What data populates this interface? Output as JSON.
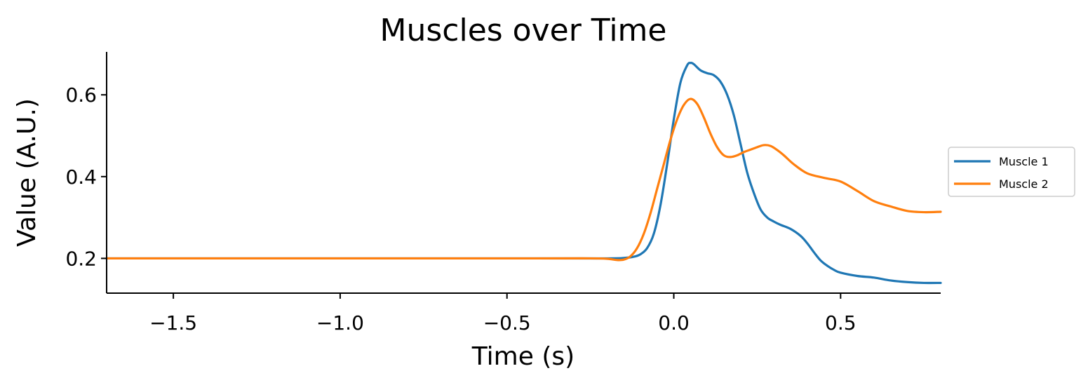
{
  "chart_data": {
    "type": "line",
    "title": "Muscles over Time",
    "xlabel": "Time (s)",
    "ylabel": "Value (A.U.)",
    "xlim": [
      -1.7,
      0.8
    ],
    "ylim": [
      0.115,
      0.705
    ],
    "xticks": [
      -1.5,
      -1.0,
      -0.5,
      0.0,
      0.5
    ],
    "xtick_labels": [
      "−1.5",
      "−1.0",
      "−0.5",
      "0.0",
      "0.5"
    ],
    "yticks": [
      0.2,
      0.4,
      0.6
    ],
    "ytick_labels": [
      "0.2",
      "0.4",
      "0.6"
    ],
    "grid": false,
    "legend_position": "right, outside plot",
    "series": [
      {
        "name": "Muscle 1",
        "color": "#1f77b4",
        "x": [
          -1.7,
          -0.5,
          -0.2,
          -0.15,
          -0.12,
          -0.1,
          -0.08,
          -0.06,
          -0.04,
          -0.02,
          0.0,
          0.02,
          0.04,
          0.05,
          0.06,
          0.08,
          0.1,
          0.12,
          0.14,
          0.16,
          0.18,
          0.2,
          0.22,
          0.24,
          0.26,
          0.28,
          0.3,
          0.32,
          0.35,
          0.38,
          0.4,
          0.42,
          0.44,
          0.46,
          0.48,
          0.5,
          0.55,
          0.6,
          0.65,
          0.7,
          0.75,
          0.8
        ],
        "values": [
          0.2,
          0.2,
          0.2,
          0.201,
          0.204,
          0.21,
          0.225,
          0.26,
          0.33,
          0.43,
          0.54,
          0.63,
          0.672,
          0.678,
          0.675,
          0.66,
          0.653,
          0.648,
          0.632,
          0.6,
          0.55,
          0.48,
          0.41,
          0.36,
          0.32,
          0.3,
          0.29,
          0.282,
          0.272,
          0.255,
          0.237,
          0.215,
          0.195,
          0.182,
          0.172,
          0.165,
          0.157,
          0.153,
          0.146,
          0.142,
          0.14,
          0.14
        ]
      },
      {
        "name": "Muscle 2",
        "color": "#ff7f0e",
        "x": [
          -1.7,
          -0.5,
          -0.25,
          -0.2,
          -0.17,
          -0.15,
          -0.13,
          -0.11,
          -0.09,
          -0.07,
          -0.05,
          -0.03,
          -0.01,
          0.01,
          0.03,
          0.05,
          0.07,
          0.09,
          0.11,
          0.13,
          0.15,
          0.17,
          0.19,
          0.21,
          0.23,
          0.25,
          0.27,
          0.29,
          0.31,
          0.33,
          0.36,
          0.4,
          0.45,
          0.5,
          0.55,
          0.6,
          0.65,
          0.7,
          0.75,
          0.8
        ],
        "values": [
          0.2,
          0.2,
          0.2,
          0.199,
          0.196,
          0.197,
          0.205,
          0.225,
          0.26,
          0.31,
          0.37,
          0.43,
          0.49,
          0.54,
          0.575,
          0.59,
          0.578,
          0.545,
          0.505,
          0.472,
          0.452,
          0.448,
          0.452,
          0.46,
          0.466,
          0.472,
          0.477,
          0.475,
          0.465,
          0.452,
          0.43,
          0.408,
          0.397,
          0.388,
          0.365,
          0.34,
          0.327,
          0.316,
          0.313,
          0.314
        ]
      }
    ]
  }
}
